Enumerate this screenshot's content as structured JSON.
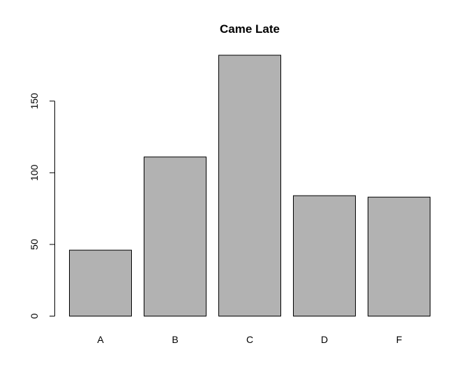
{
  "chart_data": {
    "type": "bar",
    "title": "Came Late",
    "xlabel": "",
    "ylabel": "",
    "categories": [
      "A",
      "B",
      "C",
      "D",
      "F"
    ],
    "values": [
      46,
      111,
      182,
      84,
      83
    ],
    "ylim": [
      0,
      182
    ],
    "yticks": [
      0,
      50,
      100,
      150
    ],
    "ytick_labels": [
      "0",
      "50",
      "100",
      "150"
    ],
    "bar_color": "#b2b2b2",
    "bar_border_color": "#000000",
    "grid": false,
    "legend": "none"
  }
}
